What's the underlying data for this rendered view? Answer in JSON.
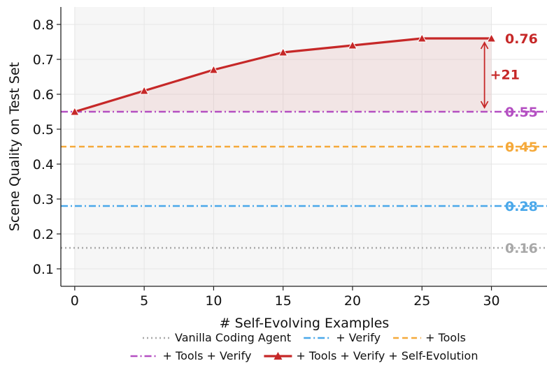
{
  "chart_data": {
    "type": "line",
    "xlabel": "# Self-Evolving Examples",
    "ylabel": "Scene Quality on Test Set",
    "xlim": [
      -1,
      34
    ],
    "ylim": [
      0.05,
      0.85
    ],
    "x_ticks": [
      0,
      5,
      10,
      15,
      20,
      25,
      30
    ],
    "y_ticks": [
      0.1,
      0.2,
      0.3,
      0.4,
      0.5,
      0.6,
      0.7,
      0.8
    ],
    "x_tick_labels": [
      "0",
      "5",
      "10",
      "15",
      "20",
      "25",
      "30"
    ],
    "y_tick_labels": [
      "0.1",
      "0.2",
      "0.3",
      "0.4",
      "0.5",
      "0.6",
      "0.7",
      "0.8"
    ],
    "grid": true,
    "legend_position": "bottom",
    "baselines": [
      {
        "name": "Vanilla Coding Agent",
        "value": 0.16,
        "label": "0.16",
        "color": "#a8a8a8",
        "style": "dotted"
      },
      {
        "name": "+ Verify",
        "value": 0.28,
        "label": "0.28",
        "color": "#4aa8ea",
        "style": "dashdot"
      },
      {
        "name": "+ Tools",
        "value": 0.45,
        "label": "0.45",
        "color": "#f5a93a",
        "style": "dashed"
      },
      {
        "name": "+ Tools + Verify",
        "value": 0.55,
        "label": "0.55",
        "color": "#b44fc2",
        "style": "dashdot"
      }
    ],
    "series": [
      {
        "name": "+ Tools + Verify + Self-Evolution",
        "x": [
          0,
          5,
          10,
          15,
          20,
          25,
          30
        ],
        "values": [
          0.55,
          0.61,
          0.67,
          0.72,
          0.74,
          0.76,
          0.76
        ],
        "color": "#c62828",
        "marker": "triangle"
      }
    ],
    "end_label": {
      "text": "0.76",
      "color": "#c62828"
    },
    "improvement_annotation": {
      "text": "+21",
      "from": 0.55,
      "to": 0.76,
      "x": 29.5,
      "color": "#c62828"
    }
  }
}
